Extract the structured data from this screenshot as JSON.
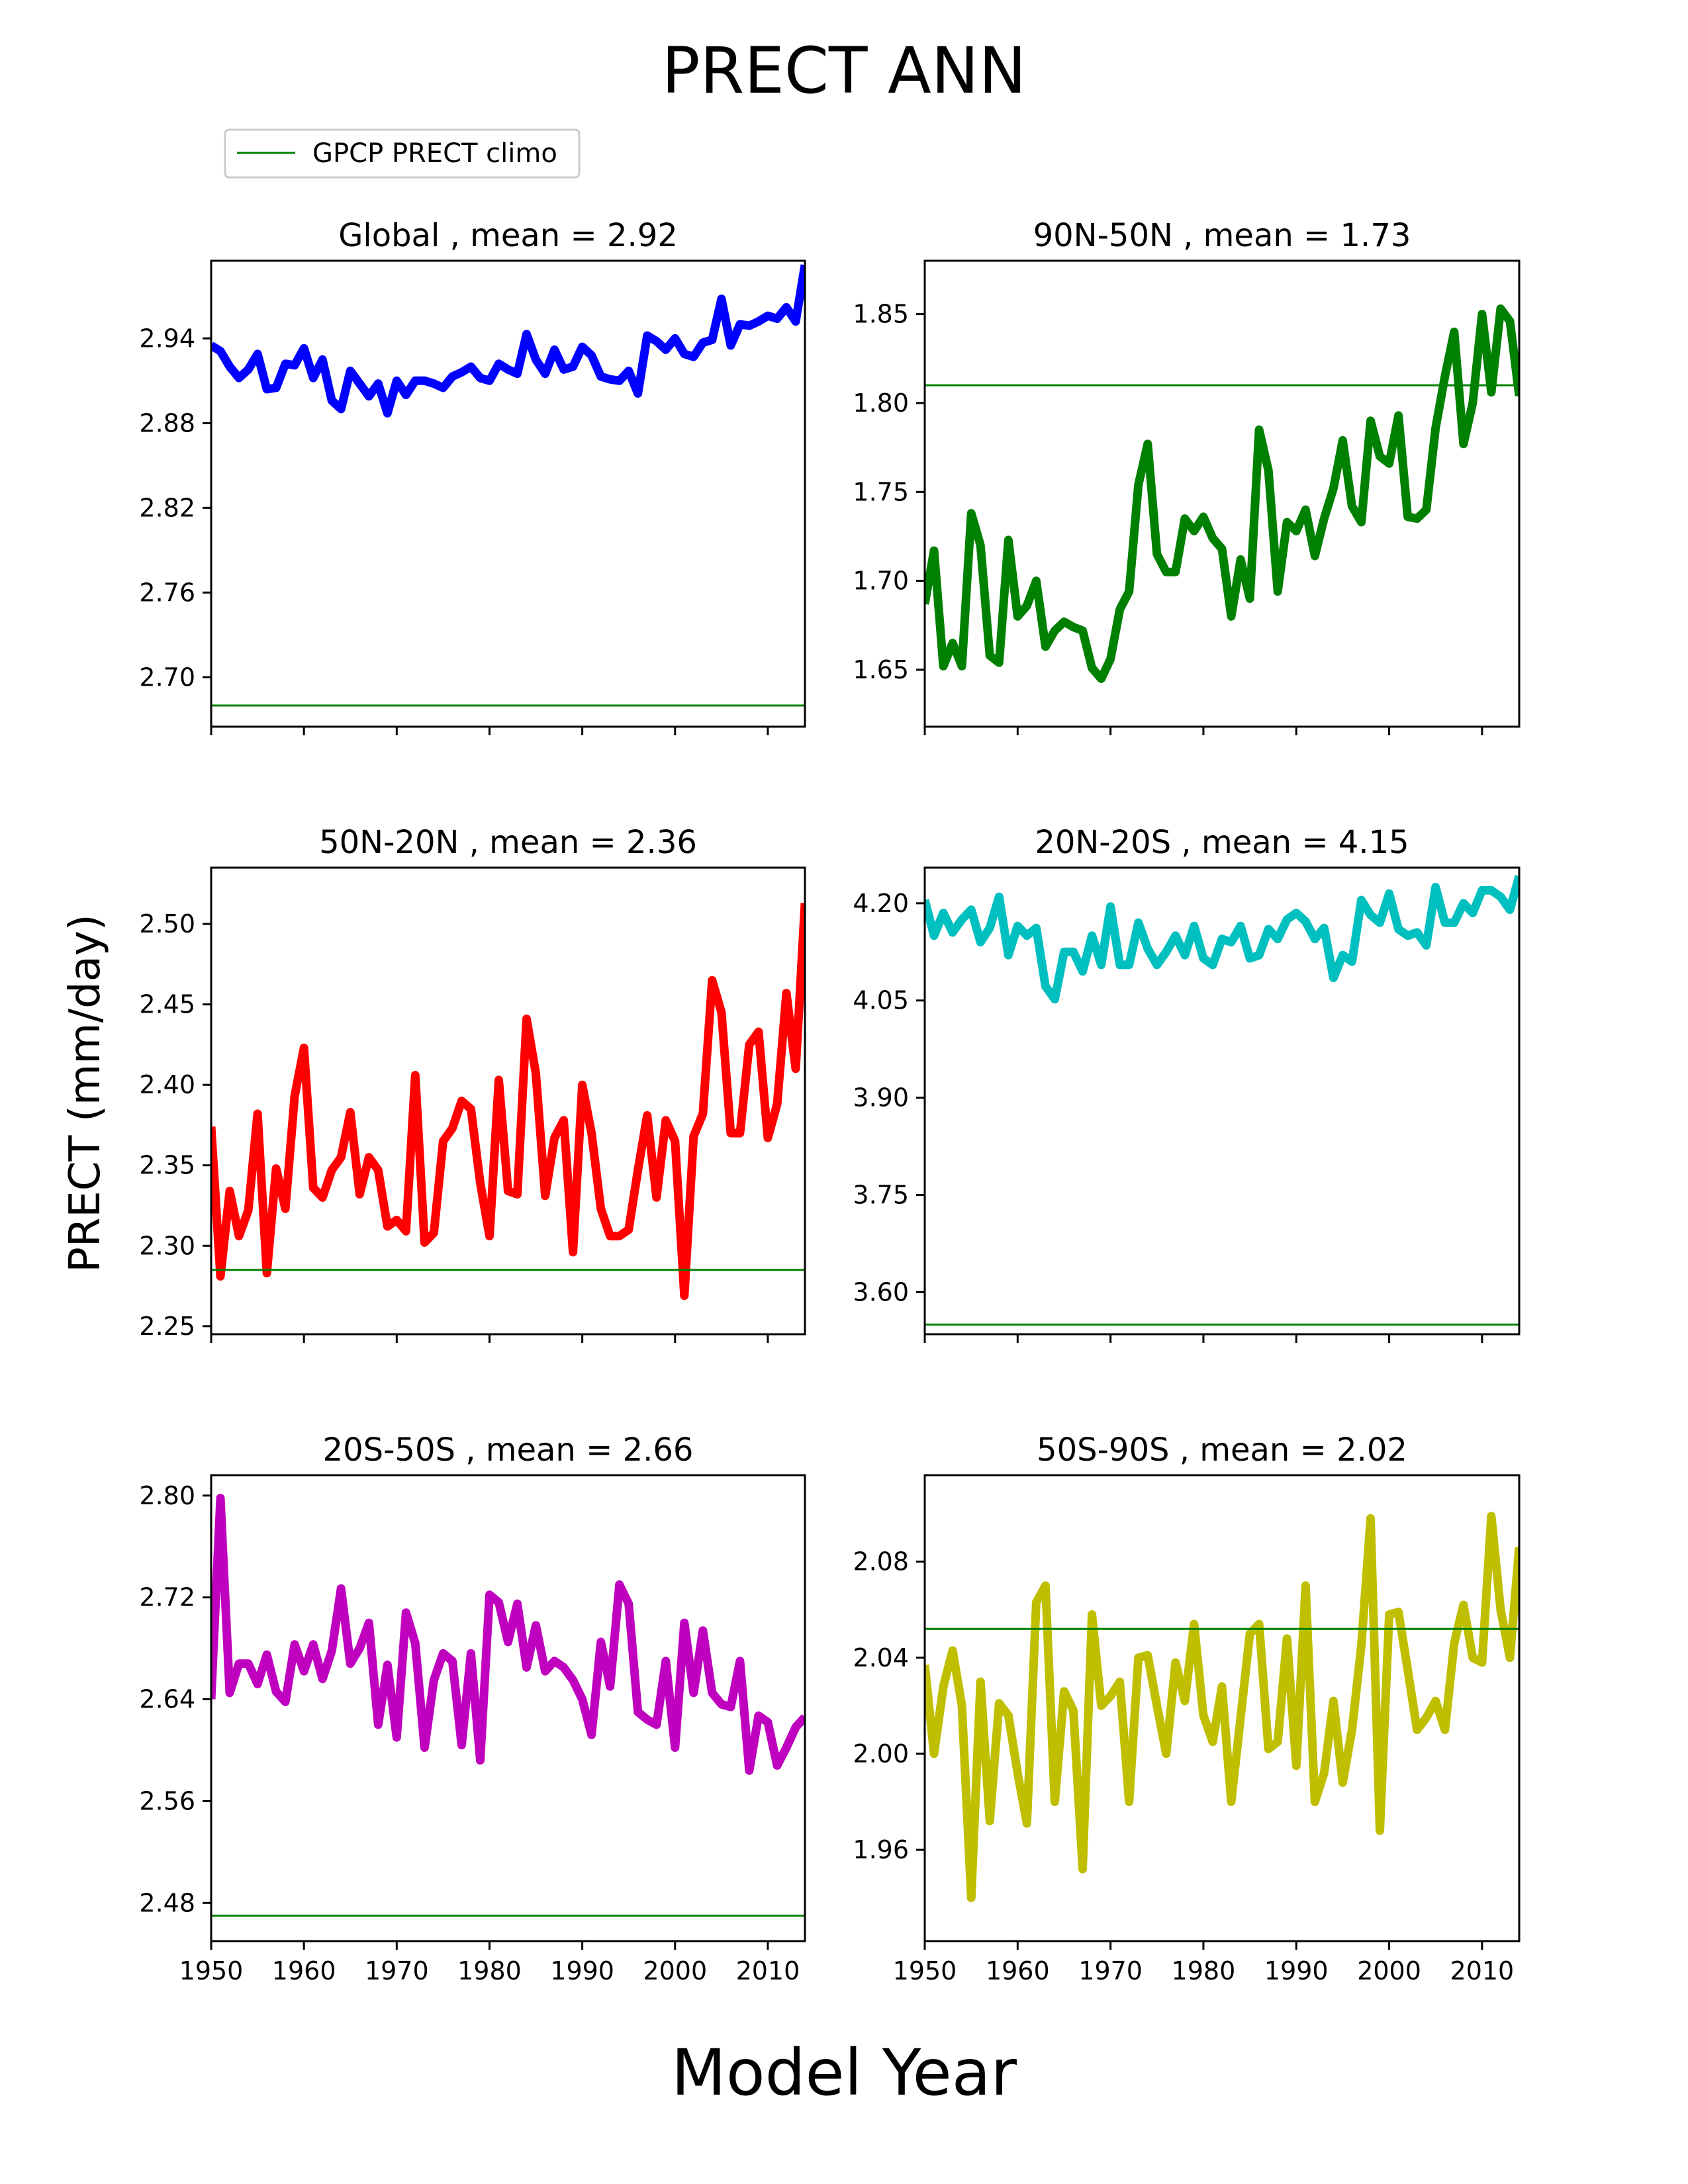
{
  "title": "PRECT ANN",
  "xlabel": "Model Year",
  "ylabel": "PRECT (mm/day)",
  "legend": {
    "label": "GPCP PRECT climo",
    "color": "#008000"
  },
  "chart_data": [
    {
      "type": "line",
      "title": "Global , mean = 2.92",
      "region": "Global",
      "mean": 2.92,
      "color": "#0000ff",
      "xlim": [
        1950,
        2014
      ],
      "ylim": [
        2.665,
        2.995
      ],
      "xticks": [
        1950,
        1960,
        1970,
        1980,
        1990,
        2000,
        2010
      ],
      "yticks": [
        2.7,
        2.76,
        2.82,
        2.88,
        2.94
      ],
      "climo": 2.68,
      "x": [
        1950,
        1951,
        1952,
        1953,
        1954,
        1955,
        1956,
        1957,
        1958,
        1959,
        1960,
        1961,
        1962,
        1963,
        1964,
        1965,
        1966,
        1967,
        1968,
        1969,
        1970,
        1971,
        1972,
        1973,
        1974,
        1975,
        1976,
        1977,
        1978,
        1979,
        1980,
        1981,
        1982,
        1983,
        1984,
        1985,
        1986,
        1987,
        1988,
        1989,
        1990,
        1991,
        1992,
        1993,
        1994,
        1995,
        1996,
        1997,
        1998,
        1999,
        2000,
        2001,
        2002,
        2003,
        2004,
        2005,
        2006,
        2007,
        2008,
        2009,
        2010,
        2011,
        2012,
        2013,
        2014
      ],
      "values": [
        2.935,
        2.931,
        2.92,
        2.912,
        2.918,
        2.929,
        2.904,
        2.905,
        2.922,
        2.921,
        2.933,
        2.912,
        2.925,
        2.896,
        2.89,
        2.917,
        2.908,
        2.899,
        2.908,
        2.887,
        2.91,
        2.9,
        2.91,
        2.91,
        2.908,
        2.905,
        2.913,
        2.916,
        2.92,
        2.912,
        2.91,
        2.922,
        2.918,
        2.915,
        2.943,
        2.925,
        2.915,
        2.932,
        2.918,
        2.92,
        2.934,
        2.928,
        2.913,
        2.911,
        2.91,
        2.917,
        2.901,
        2.942,
        2.938,
        2.932,
        2.94,
        2.929,
        2.927,
        2.937,
        2.939,
        2.968,
        2.935,
        2.95,
        2.949,
        2.952,
        2.956,
        2.954,
        2.962,
        2.952,
        2.992
      ]
    },
    {
      "type": "line",
      "title": "90N-50N , mean = 1.73",
      "region": "90N-50N",
      "mean": 1.73,
      "color": "#008000",
      "xlim": [
        1950,
        2014
      ],
      "ylim": [
        1.618,
        1.88
      ],
      "xticks": [
        1950,
        1960,
        1970,
        1980,
        1990,
        2000,
        2010
      ],
      "yticks": [
        1.65,
        1.7,
        1.75,
        1.8,
        1.85
      ],
      "climo": 1.81,
      "x": [
        1950,
        1951,
        1952,
        1953,
        1954,
        1955,
        1956,
        1957,
        1958,
        1959,
        1960,
        1961,
        1962,
        1963,
        1964,
        1965,
        1966,
        1967,
        1968,
        1969,
        1970,
        1971,
        1972,
        1973,
        1974,
        1975,
        1976,
        1977,
        1978,
        1979,
        1980,
        1981,
        1982,
        1983,
        1984,
        1985,
        1986,
        1987,
        1988,
        1989,
        1990,
        1991,
        1992,
        1993,
        1994,
        1995,
        1996,
        1997,
        1998,
        1999,
        2000,
        2001,
        2002,
        2003,
        2004,
        2005,
        2006,
        2007,
        2008,
        2009,
        2010,
        2011,
        2012,
        2013,
        2014
      ],
      "values": [
        1.687,
        1.717,
        1.652,
        1.665,
        1.652,
        1.738,
        1.72,
        1.658,
        1.654,
        1.723,
        1.68,
        1.686,
        1.7,
        1.663,
        1.672,
        1.677,
        1.674,
        1.672,
        1.651,
        1.645,
        1.656,
        1.684,
        1.694,
        1.754,
        1.777,
        1.715,
        1.705,
        1.705,
        1.735,
        1.728,
        1.736,
        1.724,
        1.718,
        1.68,
        1.712,
        1.69,
        1.785,
        1.762,
        1.694,
        1.733,
        1.728,
        1.74,
        1.714,
        1.735,
        1.752,
        1.779,
        1.742,
        1.733,
        1.79,
        1.77,
        1.766,
        1.793,
        1.736,
        1.735,
        1.74,
        1.786,
        1.815,
        1.84,
        1.777,
        1.8,
        1.85,
        1.806,
        1.853,
        1.846,
        1.804
      ]
    },
    {
      "type": "line",
      "title": "50N-20N , mean = 2.36",
      "region": "50N-20N",
      "mean": 2.36,
      "color": "#ff0000",
      "xlim": [
        1950,
        2014
      ],
      "ylim": [
        2.245,
        2.535
      ],
      "xticks": [
        1950,
        1960,
        1970,
        1980,
        1990,
        2000,
        2010
      ],
      "yticks": [
        2.25,
        2.3,
        2.35,
        2.4,
        2.45,
        2.5
      ],
      "climo": 2.285,
      "x": [
        1950,
        1951,
        1952,
        1953,
        1954,
        1955,
        1956,
        1957,
        1958,
        1959,
        1960,
        1961,
        1962,
        1963,
        1964,
        1965,
        1966,
        1967,
        1968,
        1969,
        1970,
        1971,
        1972,
        1973,
        1974,
        1975,
        1976,
        1977,
        1978,
        1979,
        1980,
        1981,
        1982,
        1983,
        1984,
        1985,
        1986,
        1987,
        1988,
        1989,
        1990,
        1991,
        1992,
        1993,
        1994,
        1995,
        1996,
        1997,
        1998,
        1999,
        2000,
        2001,
        2002,
        2003,
        2004,
        2005,
        2006,
        2007,
        2008,
        2009,
        2010,
        2011,
        2012,
        2013,
        2014
      ],
      "values": [
        2.374,
        2.281,
        2.334,
        2.306,
        2.322,
        2.382,
        2.283,
        2.348,
        2.323,
        2.393,
        2.423,
        2.336,
        2.33,
        2.347,
        2.355,
        2.383,
        2.332,
        2.355,
        2.347,
        2.312,
        2.316,
        2.309,
        2.406,
        2.302,
        2.308,
        2.365,
        2.373,
        2.39,
        2.385,
        2.339,
        2.306,
        2.403,
        2.334,
        2.332,
        2.441,
        2.407,
        2.331,
        2.367,
        2.378,
        2.296,
        2.4,
        2.37,
        2.323,
        2.306,
        2.306,
        2.31,
        2.347,
        2.381,
        2.33,
        2.378,
        2.365,
        2.269,
        2.368,
        2.382,
        2.465,
        2.445,
        2.37,
        2.37,
        2.425,
        2.433,
        2.367,
        2.388,
        2.457,
        2.41,
        2.513
      ]
    },
    {
      "type": "line",
      "title": "20N-20S , mean = 4.15",
      "region": "20N-20S",
      "mean": 4.15,
      "color": "#00bfbf",
      "xlim": [
        1950,
        2014
      ],
      "ylim": [
        3.535,
        4.255
      ],
      "xticks": [
        1950,
        1960,
        1970,
        1980,
        1990,
        2000,
        2010
      ],
      "yticks": [
        3.6,
        3.75,
        3.9,
        4.05,
        4.2
      ],
      "climo": 3.55,
      "x": [
        1950,
        1951,
        1952,
        1953,
        1954,
        1955,
        1956,
        1957,
        1958,
        1959,
        1960,
        1961,
        1962,
        1963,
        1964,
        1965,
        1966,
        1967,
        1968,
        1969,
        1970,
        1971,
        1972,
        1973,
        1974,
        1975,
        1976,
        1977,
        1978,
        1979,
        1980,
        1981,
        1982,
        1983,
        1984,
        1985,
        1986,
        1987,
        1988,
        1989,
        1990,
        1991,
        1992,
        1993,
        1994,
        1995,
        1996,
        1997,
        1998,
        1999,
        2000,
        2001,
        2002,
        2003,
        2004,
        2005,
        2006,
        2007,
        2008,
        2009,
        2010,
        2011,
        2012,
        2013,
        2014
      ],
      "values": [
        4.205,
        4.15,
        4.185,
        4.155,
        4.175,
        4.19,
        4.14,
        4.162,
        4.21,
        4.12,
        4.165,
        4.15,
        4.162,
        4.072,
        4.052,
        4.125,
        4.125,
        4.095,
        4.15,
        4.105,
        4.195,
        4.105,
        4.105,
        4.17,
        4.13,
        4.105,
        4.125,
        4.15,
        4.12,
        4.165,
        4.115,
        4.105,
        4.145,
        4.14,
        4.165,
        4.115,
        4.12,
        4.16,
        4.145,
        4.175,
        4.185,
        4.172,
        4.145,
        4.162,
        4.085,
        4.12,
        4.11,
        4.205,
        4.182,
        4.17,
        4.215,
        4.16,
        4.15,
        4.155,
        4.135,
        4.225,
        4.17,
        4.17,
        4.2,
        4.185,
        4.22,
        4.22,
        4.21,
        4.19,
        4.242
      ]
    },
    {
      "type": "line",
      "title": "20S-50S , mean = 2.66",
      "region": "20S-50S",
      "mean": 2.66,
      "color": "#bf00bf",
      "xlim": [
        1950,
        2014
      ],
      "ylim": [
        2.45,
        2.816
      ],
      "xticks": [
        1950,
        1960,
        1970,
        1980,
        1990,
        2000,
        2010
      ],
      "yticks": [
        2.48,
        2.56,
        2.64,
        2.72,
        2.8
      ],
      "climo": 2.47,
      "x": [
        1950,
        1951,
        1952,
        1953,
        1954,
        1955,
        1956,
        1957,
        1958,
        1959,
        1960,
        1961,
        1962,
        1963,
        1964,
        1965,
        1966,
        1967,
        1968,
        1969,
        1970,
        1971,
        1972,
        1973,
        1974,
        1975,
        1976,
        1977,
        1978,
        1979,
        1980,
        1981,
        1982,
        1983,
        1984,
        1985,
        1986,
        1987,
        1988,
        1989,
        1990,
        1991,
        1992,
        1993,
        1994,
        1995,
        1996,
        1997,
        1998,
        1999,
        2000,
        2001,
        2002,
        2003,
        2004,
        2005,
        2006,
        2007,
        2008,
        2009,
        2010,
        2011,
        2012,
        2013,
        2014
      ],
      "values": [
        2.64,
        2.798,
        2.645,
        2.668,
        2.668,
        2.652,
        2.675,
        2.646,
        2.638,
        2.683,
        2.662,
        2.683,
        2.656,
        2.678,
        2.727,
        2.668,
        2.68,
        2.7,
        2.62,
        2.667,
        2.61,
        2.708,
        2.684,
        2.602,
        2.655,
        2.676,
        2.67,
        2.604,
        2.676,
        2.592,
        2.722,
        2.716,
        2.685,
        2.715,
        2.665,
        2.698,
        2.662,
        2.67,
        2.665,
        2.655,
        2.64,
        2.612,
        2.685,
        2.65,
        2.73,
        2.715,
        2.63,
        2.624,
        2.62,
        2.67,
        2.602,
        2.7,
        2.645,
        2.694,
        2.645,
        2.636,
        2.634,
        2.67,
        2.584,
        2.627,
        2.622,
        2.588,
        2.602,
        2.618,
        2.626
      ]
    },
    {
      "type": "line",
      "title": "50S-90S , mean = 2.02",
      "region": "50S-90S",
      "mean": 2.02,
      "color": "#bfbf00",
      "xlim": [
        1950,
        2014
      ],
      "ylim": [
        1.922,
        2.116
      ],
      "xticks": [
        1950,
        1960,
        1970,
        1980,
        1990,
        2000,
        2010
      ],
      "yticks": [
        1.96,
        2.0,
        2.04,
        2.08
      ],
      "climo": 2.052,
      "x": [
        1950,
        1951,
        1952,
        1953,
        1954,
        1955,
        1956,
        1957,
        1958,
        1959,
        1960,
        1961,
        1962,
        1963,
        1964,
        1965,
        1966,
        1967,
        1968,
        1969,
        1970,
        1971,
        1972,
        1973,
        1974,
        1975,
        1976,
        1977,
        1978,
        1979,
        1980,
        1981,
        1982,
        1983,
        1984,
        1985,
        1986,
        1987,
        1988,
        1989,
        1990,
        1991,
        1992,
        1993,
        1994,
        1995,
        1996,
        1997,
        1998,
        1999,
        2000,
        2001,
        2002,
        2003,
        2004,
        2005,
        2006,
        2007,
        2008,
        2009,
        2010,
        2011,
        2012,
        2013,
        2014
      ],
      "values": [
        2.037,
        2.0,
        2.028,
        2.043,
        2.02,
        1.94,
        2.03,
        1.972,
        2.021,
        2.016,
        1.992,
        1.971,
        2.063,
        2.07,
        1.98,
        2.026,
        2.018,
        1.952,
        2.058,
        2.02,
        2.024,
        2.03,
        1.98,
        2.04,
        2.041,
        2.02,
        2.0,
        2.038,
        2.022,
        2.054,
        2.016,
        2.005,
        2.028,
        1.98,
        2.015,
        2.05,
        2.054,
        2.002,
        2.005,
        2.048,
        1.995,
        2.07,
        1.98,
        1.992,
        2.022,
        1.988,
        2.01,
        2.045,
        2.098,
        1.968,
        2.058,
        2.059,
        2.035,
        2.01,
        2.015,
        2.022,
        2.01,
        2.046,
        2.062,
        2.04,
        2.038,
        2.099,
        2.06,
        2.04,
        2.086
      ]
    }
  ]
}
